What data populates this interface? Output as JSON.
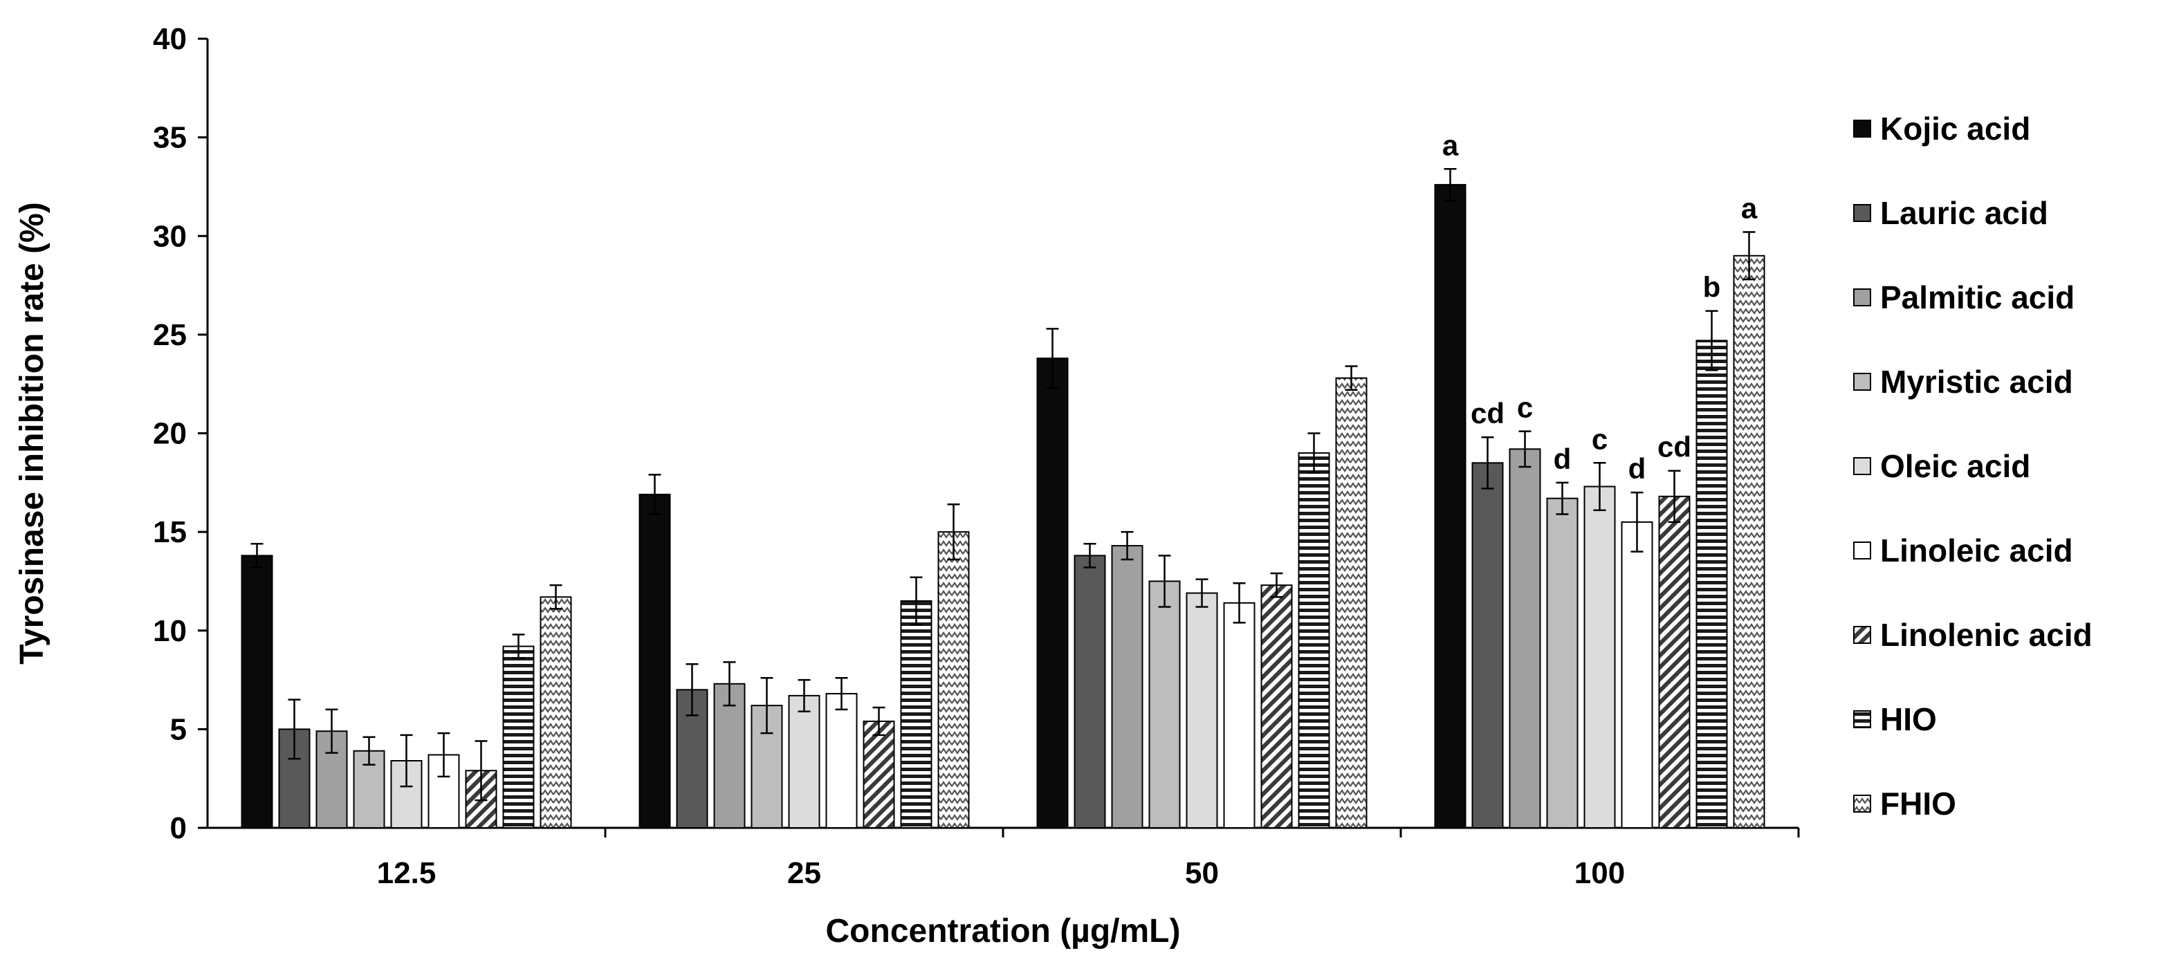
{
  "chart_data": {
    "type": "bar",
    "title": "",
    "xlabel": "Concentration (µg/mL)",
    "ylabel": "Tyrosinase inhibition rate (%)",
    "ylim": [
      0,
      40
    ],
    "yticks": [
      0,
      5,
      10,
      15,
      20,
      25,
      30,
      35,
      40
    ],
    "grid": false,
    "legend_position": "right",
    "categories": [
      "12.5",
      "25",
      "50",
      "100"
    ],
    "series": [
      {
        "name": "Kojic acid",
        "pattern": "solid-black",
        "values": [
          13.8,
          16.9,
          23.8,
          32.6
        ],
        "errors": [
          0.6,
          1.0,
          1.5,
          0.8
        ],
        "sig": [
          "",
          "",
          "",
          "a"
        ]
      },
      {
        "name": "Lauric acid",
        "pattern": "solid-dark-gray",
        "values": [
          5.0,
          7.0,
          13.8,
          18.5
        ],
        "errors": [
          1.5,
          1.3,
          0.6,
          1.3
        ],
        "sig": [
          "",
          "",
          "",
          "cd"
        ]
      },
      {
        "name": "Palmitic acid",
        "pattern": "solid-gray",
        "values": [
          4.9,
          7.3,
          14.3,
          19.2
        ],
        "errors": [
          1.1,
          1.1,
          0.7,
          0.9
        ],
        "sig": [
          "",
          "",
          "",
          "c"
        ]
      },
      {
        "name": "Myristic acid",
        "pattern": "solid-light-gray",
        "values": [
          3.9,
          6.2,
          12.5,
          16.7
        ],
        "errors": [
          0.7,
          1.4,
          1.3,
          0.8
        ],
        "sig": [
          "",
          "",
          "",
          "d"
        ]
      },
      {
        "name": "Oleic acid",
        "pattern": "solid-lighter-gray",
        "values": [
          3.4,
          6.7,
          11.9,
          17.3
        ],
        "errors": [
          1.3,
          0.8,
          0.7,
          1.2
        ],
        "sig": [
          "",
          "",
          "",
          "c"
        ]
      },
      {
        "name": "Linoleic acid",
        "pattern": "white",
        "values": [
          3.7,
          6.8,
          11.4,
          15.5
        ],
        "errors": [
          1.1,
          0.8,
          1.0,
          1.5
        ],
        "sig": [
          "",
          "",
          "",
          "d"
        ]
      },
      {
        "name": "Linolenic acid",
        "pattern": "diagonal-hatch",
        "values": [
          2.9,
          5.4,
          12.3,
          16.8
        ],
        "errors": [
          1.5,
          0.7,
          0.6,
          1.3
        ],
        "sig": [
          "",
          "",
          "",
          "cd"
        ]
      },
      {
        "name": "HIO",
        "pattern": "horizontal-stripes",
        "values": [
          9.2,
          11.5,
          19.0,
          24.7
        ],
        "errors": [
          0.6,
          1.2,
          1.0,
          1.5
        ],
        "sig": [
          "",
          "",
          "",
          "b"
        ]
      },
      {
        "name": "FHIO",
        "pattern": "zigzag",
        "values": [
          11.7,
          15.0,
          22.8,
          29.0
        ],
        "errors": [
          0.6,
          1.4,
          0.6,
          1.2
        ],
        "sig": [
          "",
          "",
          "",
          "a"
        ]
      }
    ]
  }
}
